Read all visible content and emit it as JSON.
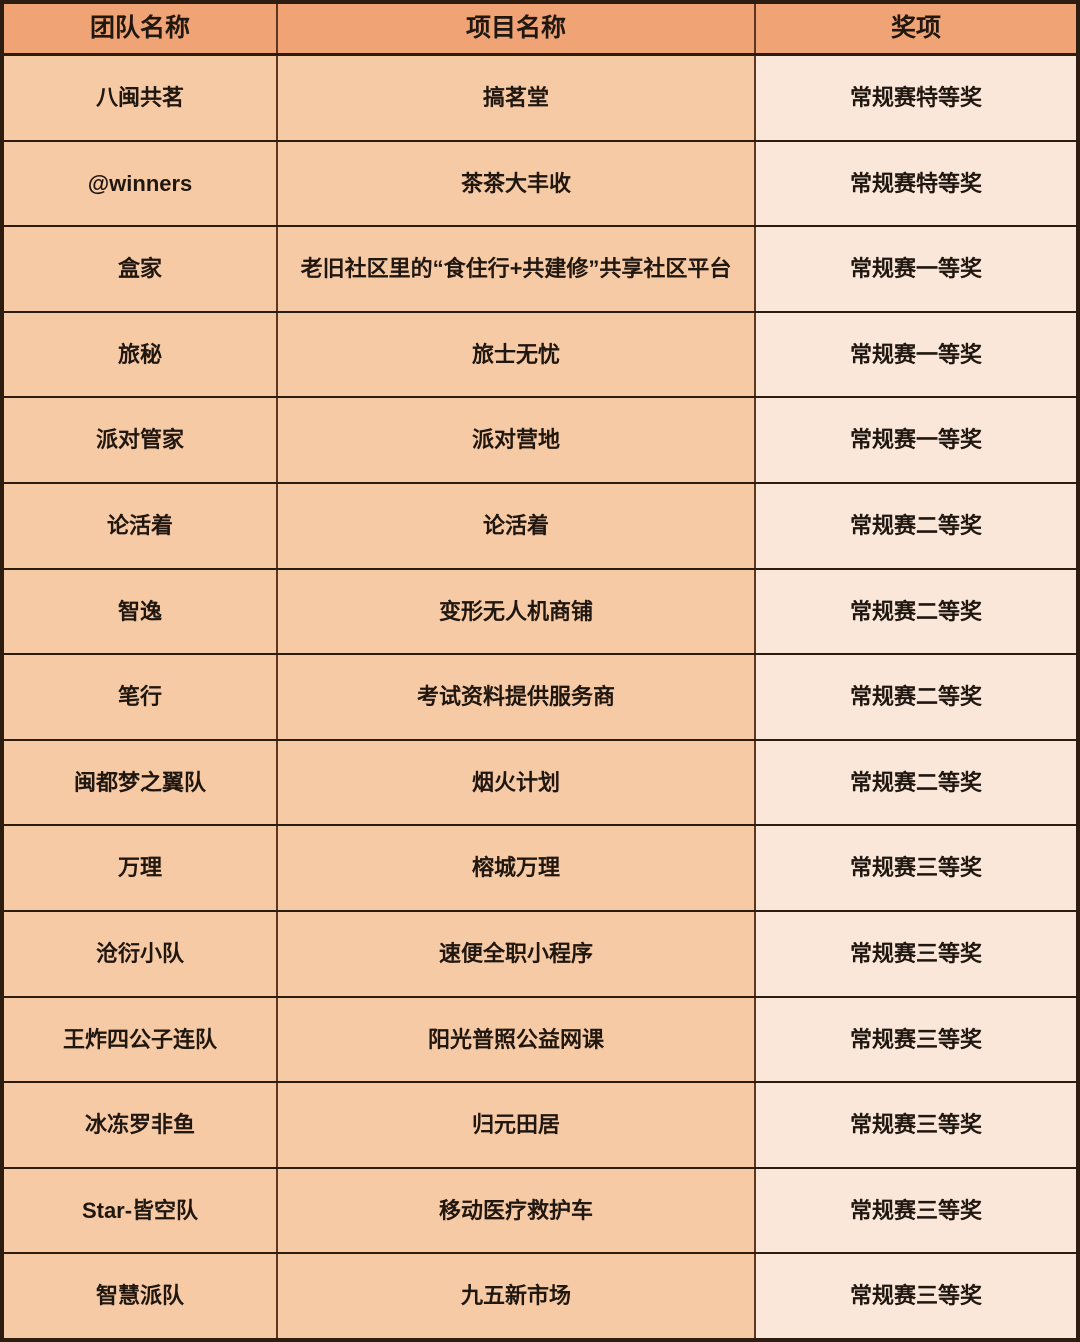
{
  "colors": {
    "header_bg": "#F0A475",
    "row_bg": "#F7CAA6",
    "award_bg": "#FAE7D9",
    "line_dark": "#2D1C10",
    "line_brown": "#5E3620",
    "text": "#201710",
    "page_bg": "#FFFFFF"
  },
  "table": {
    "columns": [
      "团队名称",
      "项目名称",
      "奖项"
    ],
    "rows": [
      {
        "team": "八闽共茗",
        "project": "搞茗堂",
        "award": "常规赛特等奖"
      },
      {
        "team": "@winners",
        "project": "茶茶大丰收",
        "award": "常规赛特等奖"
      },
      {
        "team": "盒家",
        "project": "老旧社区里的“食住行+共建修”共享社区平台",
        "award": "常规赛一等奖"
      },
      {
        "team": "旅秘",
        "project": "旅士无忧",
        "award": "常规赛一等奖"
      },
      {
        "team": "派对管家",
        "project": "派对营地",
        "award": "常规赛一等奖"
      },
      {
        "team": "论活着",
        "project": "论活着",
        "award": "常规赛二等奖"
      },
      {
        "team": "智逸",
        "project": "变形无人机商铺",
        "award": "常规赛二等奖"
      },
      {
        "team": "笔行",
        "project": "考试资料提供服务商",
        "award": "常规赛二等奖"
      },
      {
        "team": "闽都梦之翼队",
        "project": "烟火计划",
        "award": "常规赛二等奖"
      },
      {
        "team": "万理",
        "project": "榕城万理",
        "award": "常规赛三等奖"
      },
      {
        "team": "沧衍小队",
        "project": "速便全职小程序",
        "award": "常规赛三等奖"
      },
      {
        "team": "王炸四公子连队",
        "project": "阳光普照公益网课",
        "award": "常规赛三等奖"
      },
      {
        "team": "冰冻罗非鱼",
        "project": "归元田居",
        "award": "常规赛三等奖"
      },
      {
        "team": "Star-皆空队",
        "project": "移动医疗救护车",
        "award": "常规赛三等奖"
      },
      {
        "team": "智慧派队",
        "project": "九五新市场",
        "award": "常规赛三等奖"
      }
    ]
  }
}
